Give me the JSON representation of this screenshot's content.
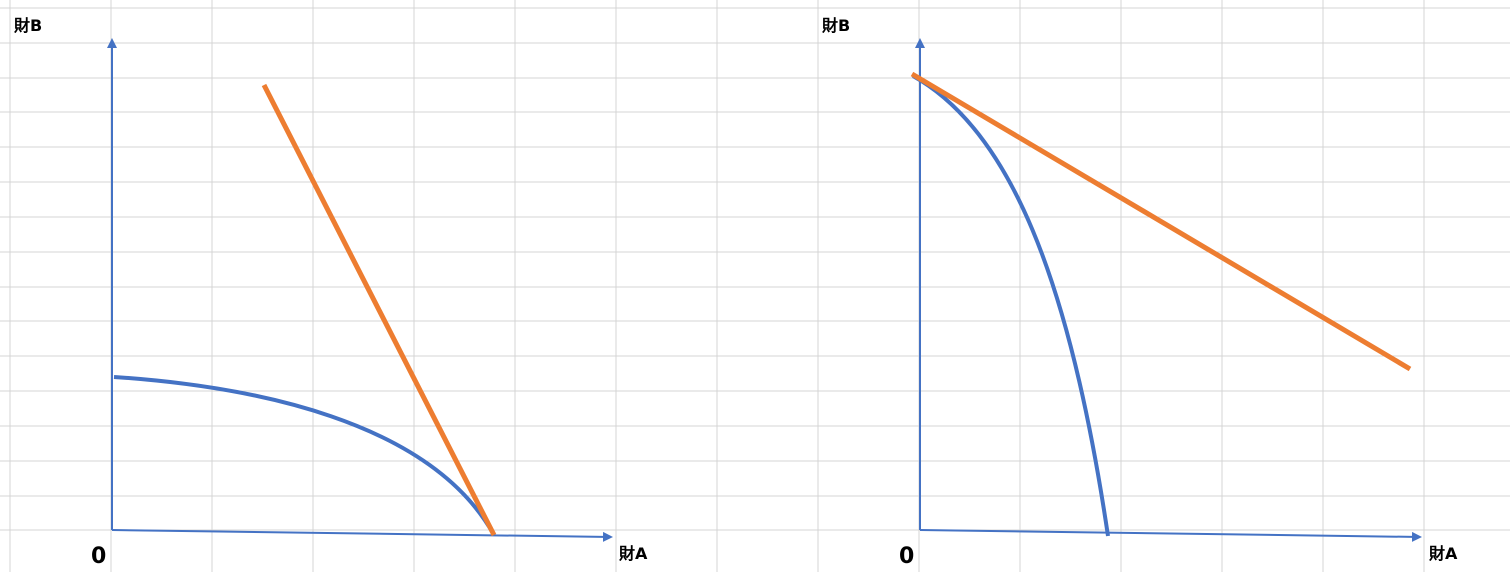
{
  "colors": {
    "gridline": "#d4d4d4",
    "axis": "#4472c4",
    "curve": "#4472c4",
    "line": "#ed7d31"
  },
  "panels": [
    {
      "y_axis_label": "財B",
      "x_axis_label": "財A",
      "origin_label": "0"
    },
    {
      "y_axis_label": "財B",
      "x_axis_label": "財A",
      "origin_label": "0"
    }
  ]
}
